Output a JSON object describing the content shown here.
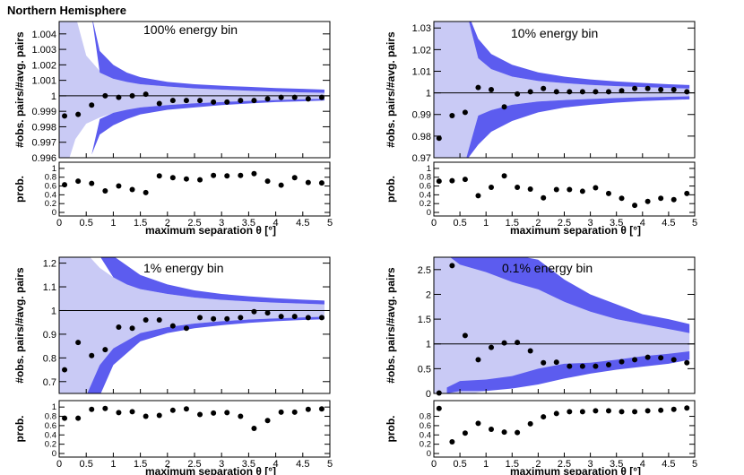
{
  "figure_title": "Northern Hemisphere",
  "chart_data": [
    {
      "type": "scatter",
      "title": "100% energy bin",
      "xlabel": "maximum separation θ [°]",
      "ylabel": "#obs. pairs/#avg. pairs",
      "sub_ylabel": "prob.",
      "xlim": [
        0,
        5
      ],
      "ylim": [
        0.996,
        1.0048
      ],
      "yticks": [
        0.996,
        0.997,
        0.998,
        0.999,
        1,
        1.001,
        1.002,
        1.003,
        1.004
      ],
      "ytick_labels": [
        "0.996",
        "0.997",
        "0.998",
        "0.999",
        "1",
        "1.001",
        "1.002",
        "1.003",
        "1.004"
      ],
      "xticks": [
        0,
        0.5,
        1,
        1.5,
        2,
        2.5,
        3,
        3.5,
        4,
        4.5,
        5
      ],
      "xtick_labels": [
        "0",
        "0.5",
        "1",
        "1.5",
        "2",
        "2.5",
        "3",
        "3.5",
        "4",
        "4.5",
        "5"
      ],
      "reference_line": 1,
      "x": [
        0.1,
        0.35,
        0.6,
        0.85,
        1.1,
        1.35,
        1.6,
        1.85,
        2.1,
        2.35,
        2.6,
        2.85,
        3.1,
        3.35,
        3.6,
        3.85,
        4.1,
        4.35,
        4.6,
        4.85
      ],
      "ratio": [
        0.9987,
        0.9988,
        0.9994,
        1.0,
        0.9999,
        1.0,
        1.0001,
        0.9995,
        0.9997,
        0.9997,
        0.9997,
        0.9996,
        0.9996,
        0.9997,
        0.9997,
        0.9998,
        0.9999,
        0.9999,
        0.9998,
        0.9999
      ],
      "prob": [
        0.63,
        0.71,
        0.66,
        0.49,
        0.6,
        0.52,
        0.45,
        0.83,
        0.79,
        0.76,
        0.74,
        0.84,
        0.83,
        0.84,
        0.88,
        0.71,
        0.62,
        0.79,
        0.68,
        0.67
      ],
      "light_band": {
        "x": [
          0,
          0.1,
          0.3,
          0.5,
          0.75,
          1,
          1.5,
          2,
          2.5,
          3,
          3.5,
          4,
          4.5,
          4.9
        ],
        "upper": [
          1.0052,
          1.0052,
          1.0052,
          1.0026,
          1.0016,
          1.0011,
          1.00075,
          1.0006,
          1.00048,
          1.0004,
          1.00033,
          1.00027,
          1.00022,
          1.0002
        ],
        "lower": [
          0.995,
          0.995,
          0.9972,
          0.9982,
          0.9986,
          0.9989,
          0.99925,
          0.9994,
          0.99952,
          0.9996,
          0.99967,
          0.99973,
          0.99978,
          0.9998
        ]
      },
      "dark_band_upper": {
        "x": [
          0.6,
          0.75,
          1,
          1.25,
          1.5,
          2,
          2.5,
          3,
          3.5,
          4,
          4.5,
          4.9
        ],
        "upper": [
          1.0052,
          1.0029,
          1.002,
          1.0015,
          1.0012,
          1.0009,
          1.00075,
          1.00065,
          1.00058,
          1.0005,
          1.00045,
          1.0004
        ],
        "lower": [
          1.0052,
          1.0015,
          1.0011,
          1.0009,
          1.00075,
          1.0006,
          1.00048,
          1.0004,
          1.00033,
          1.00027,
          1.00022,
          1.0002
        ]
      },
      "dark_band_lower": {
        "x": [
          0.6,
          0.75,
          1,
          1.25,
          1.5,
          2,
          2.5,
          3,
          3.5,
          4,
          4.5,
          4.9
        ],
        "upper": [
          0.9962,
          0.9985,
          0.9989,
          0.9991,
          0.99925,
          0.9994,
          0.99952,
          0.9996,
          0.99967,
          0.99973,
          0.99978,
          0.9998
        ],
        "lower": [
          0.9962,
          0.9975,
          0.9981,
          0.9985,
          0.9988,
          0.9991,
          0.99925,
          0.9994,
          0.9995,
          0.9996,
          0.99965,
          0.9997
        ]
      },
      "sub_yticks": [
        0,
        0.2,
        0.4,
        0.6,
        0.8,
        1
      ],
      "sub_ytick_labels": [
        "0",
        "0.2",
        "0.4",
        "0.6",
        "0.8",
        "1"
      ]
    },
    {
      "type": "scatter",
      "title": "10% energy bin",
      "xlabel": "maximum separation θ [°]",
      "ylabel": "#obs. pairs/#avg. pairs",
      "sub_ylabel": "prob.",
      "xlim": [
        0,
        5
      ],
      "ylim": [
        0.97,
        1.033
      ],
      "yticks": [
        0.97,
        0.98,
        0.99,
        1,
        1.01,
        1.02,
        1.03
      ],
      "ytick_labels": [
        "0.97",
        "0.98",
        "0.99",
        "1",
        "1.01",
        "1.02",
        "1.03"
      ],
      "xticks": [
        0,
        0.5,
        1,
        1.5,
        2,
        2.5,
        3,
        3.5,
        4,
        4.5,
        5
      ],
      "xtick_labels": [
        "0",
        "0.5",
        "1",
        "1.5",
        "2",
        "2.5",
        "3",
        "3.5",
        "4",
        "4.5",
        "5"
      ],
      "reference_line": 1,
      "x": [
        0.1,
        0.35,
        0.6,
        0.85,
        1.1,
        1.35,
        1.6,
        1.85,
        2.1,
        2.35,
        2.6,
        2.85,
        3.1,
        3.35,
        3.6,
        3.85,
        4.1,
        4.35,
        4.6,
        4.85
      ],
      "ratio": [
        0.979,
        0.9895,
        0.991,
        1.0025,
        1.0015,
        0.9935,
        0.9995,
        1.0005,
        1.002,
        1.0005,
        1.0005,
        1.0005,
        1.0005,
        1.0005,
        1.001,
        1.002,
        1.002,
        1.0015,
        1.0015,
        1.0005
      ],
      "prob": [
        0.71,
        0.72,
        0.75,
        0.38,
        0.57,
        0.83,
        0.57,
        0.53,
        0.33,
        0.52,
        0.52,
        0.48,
        0.56,
        0.43,
        0.32,
        0.16,
        0.25,
        0.32,
        0.29,
        0.43
      ],
      "light_band": {
        "x": [
          0,
          0.15,
          0.35,
          0.6,
          0.85,
          1.1,
          1.5,
          2,
          2.5,
          3,
          3.5,
          4,
          4.5,
          4.9
        ],
        "upper": [
          1.04,
          1.04,
          1.04,
          1.04,
          1.016,
          1.011,
          1.0075,
          1.0055,
          1.0045,
          1.0037,
          1.0031,
          1.0027,
          1.0023,
          1.002
        ],
        "lower": [
          0.968,
          0.968,
          0.968,
          0.968,
          0.9895,
          0.992,
          0.9945,
          0.996,
          0.9967,
          0.9972,
          0.9976,
          0.9979,
          0.9982,
          0.9984
        ]
      },
      "dark_band_upper": {
        "x": [
          0.6,
          0.85,
          1.1,
          1.5,
          2,
          2.5,
          3,
          3.5,
          4,
          4.5,
          4.9
        ],
        "upper": [
          1.04,
          1.025,
          1.018,
          1.013,
          1.0095,
          1.0075,
          1.0062,
          1.0053,
          1.0046,
          1.004,
          1.0036
        ],
        "lower": [
          1.04,
          1.016,
          1.011,
          1.0075,
          1.0055,
          1.0045,
          1.0037,
          1.0031,
          1.0027,
          1.0023,
          1.002
        ]
      },
      "dark_band_lower": {
        "x": [
          0.6,
          0.85,
          1.1,
          1.5,
          2,
          2.5,
          3,
          3.5,
          4,
          4.5,
          4.9
        ],
        "upper": [
          0.968,
          0.9895,
          0.992,
          0.9945,
          0.996,
          0.9967,
          0.9972,
          0.9976,
          0.9979,
          0.9982,
          0.9984
        ],
        "lower": [
          0.968,
          0.976,
          0.982,
          0.987,
          0.991,
          0.9932,
          0.9945,
          0.9955,
          0.9962,
          0.9967,
          0.997
        ]
      },
      "sub_yticks": [
        0,
        0.2,
        0.4,
        0.6,
        0.8,
        1
      ],
      "sub_ytick_labels": [
        "0",
        "0.2",
        "0.4",
        "0.6",
        "0.8",
        "1"
      ]
    },
    {
      "type": "scatter",
      "title": "1% energy bin",
      "xlabel": "maximum separation θ [°]",
      "ylabel": "#obs. pairs/#avg. pairs",
      "sub_ylabel": "prob.",
      "xlim": [
        0,
        5
      ],
      "ylim": [
        0.65,
        1.225
      ],
      "yticks": [
        0.7,
        0.8,
        0.9,
        1,
        1.1,
        1.2
      ],
      "ytick_labels": [
        "0.7",
        "0.8",
        "0.9",
        "1",
        "1.1",
        "1.2"
      ],
      "xticks": [
        0,
        0.5,
        1,
        1.5,
        2,
        2.5,
        3,
        3.5,
        4,
        4.5,
        5
      ],
      "xtick_labels": [
        "0",
        "0.5",
        "1",
        "1.5",
        "2",
        "2.5",
        "3",
        "3.5",
        "4",
        "4.5",
        "5"
      ],
      "reference_line": 1,
      "x": [
        0.1,
        0.35,
        0.6,
        0.85,
        1.1,
        1.35,
        1.6,
        1.85,
        2.1,
        2.35,
        2.6,
        2.85,
        3.1,
        3.35,
        3.6,
        3.85,
        4.1,
        4.35,
        4.6,
        4.85
      ],
      "ratio": [
        0.75,
        0.865,
        0.81,
        0.835,
        0.93,
        0.925,
        0.96,
        0.96,
        0.935,
        0.925,
        0.97,
        0.965,
        0.965,
        0.97,
        0.995,
        0.99,
        0.975,
        0.975,
        0.97,
        0.97
      ],
      "prob": [
        0.76,
        0.76,
        0.95,
        0.97,
        0.88,
        0.9,
        0.8,
        0.82,
        0.93,
        0.96,
        0.84,
        0.87,
        0.88,
        0.8,
        0.54,
        0.71,
        0.89,
        0.89,
        0.95,
        0.96
      ],
      "light_band": {
        "x": [
          0,
          0.3,
          0.55,
          0.75,
          1,
          1.5,
          2,
          2.5,
          3,
          3.5,
          4,
          4.5,
          4.9
        ],
        "upper": [
          1.23,
          1.23,
          1.23,
          1.18,
          1.14,
          1.09,
          1.07,
          1.055,
          1.045,
          1.038,
          1.033,
          1.029,
          1.026
        ],
        "lower": [
          0.64,
          0.64,
          0.64,
          0.77,
          0.84,
          0.905,
          0.93,
          0.945,
          0.955,
          0.962,
          0.967,
          0.971,
          0.974
        ]
      },
      "dark_band_upper": {
        "x": [
          0.75,
          1,
          1.25,
          1.5,
          2,
          2.5,
          3,
          3.5,
          4,
          4.5,
          4.9
        ],
        "upper": [
          1.23,
          1.23,
          1.19,
          1.15,
          1.11,
          1.085,
          1.07,
          1.06,
          1.052,
          1.046,
          1.042
        ],
        "lower": [
          1.23,
          1.14,
          1.11,
          1.09,
          1.07,
          1.055,
          1.045,
          1.038,
          1.033,
          1.029,
          1.026
        ]
      },
      "dark_band_lower": {
        "x": [
          0.5,
          0.75,
          1,
          1.5,
          2,
          2.5,
          3,
          3.5,
          4,
          4.5,
          4.9
        ],
        "upper": [
          0.64,
          0.77,
          0.84,
          0.905,
          0.93,
          0.945,
          0.955,
          0.962,
          0.967,
          0.971,
          0.974
        ],
        "lower": [
          0.64,
          0.64,
          0.77,
          0.87,
          0.905,
          0.925,
          0.938,
          0.948,
          0.955,
          0.96,
          0.963
        ]
      },
      "sub_yticks": [
        0,
        0.2,
        0.4,
        0.6,
        0.8,
        1
      ],
      "sub_ytick_labels": [
        "0",
        "0.2",
        "0.4",
        "0.6",
        "0.8",
        "1"
      ]
    },
    {
      "type": "scatter",
      "title": "0.1% energy bin",
      "xlabel": "maximum separation θ [°]",
      "ylabel": "#obs. pairs/#avg. pairs",
      "sub_ylabel": "prob.",
      "xlim": [
        0,
        5
      ],
      "ylim": [
        0,
        2.75
      ],
      "yticks": [
        0,
        0.5,
        1,
        1.5,
        2,
        2.5
      ],
      "ytick_labels": [
        "0",
        "0.5",
        "1",
        "1.5",
        "2",
        "2.5"
      ],
      "xticks": [
        0,
        0.5,
        1,
        1.5,
        2,
        2.5,
        3,
        3.5,
        4,
        4.5,
        5
      ],
      "xtick_labels": [
        "0",
        "0.5",
        "1",
        "1.5",
        "2",
        "2.5",
        "3",
        "3.5",
        "4",
        "4.5",
        "5"
      ],
      "reference_line": 1,
      "x": [
        0.1,
        0.35,
        0.6,
        0.85,
        1.1,
        1.35,
        1.6,
        1.85,
        2.1,
        2.35,
        2.6,
        2.85,
        3.1,
        3.35,
        3.6,
        3.85,
        4.1,
        4.35,
        4.6,
        4.85
      ],
      "ratio": [
        0.01,
        2.58,
        1.17,
        0.68,
        0.93,
        1.02,
        1.03,
        0.86,
        0.62,
        0.63,
        0.55,
        0.55,
        0.55,
        0.58,
        0.64,
        0.68,
        0.73,
        0.72,
        0.68,
        0.62
      ],
      "prob": [
        0.97,
        0.25,
        0.44,
        0.65,
        0.52,
        0.46,
        0.45,
        0.64,
        0.79,
        0.86,
        0.9,
        0.9,
        0.92,
        0.92,
        0.9,
        0.9,
        0.92,
        0.93,
        0.95,
        0.98
      ],
      "light_band": {
        "x": [
          0,
          0.25,
          0.5,
          0.75,
          1,
          1.5,
          2,
          2.5,
          3,
          3.5,
          4,
          4.5,
          4.9
        ],
        "upper": [
          2.8,
          2.8,
          2.8,
          2.8,
          2.8,
          2.45,
          2.1,
          1.85,
          1.65,
          1.5,
          1.4,
          1.32,
          1.25
        ],
        "lower": [
          0,
          0,
          0,
          0,
          0.05,
          0.18,
          0.3,
          0.4,
          0.48,
          0.54,
          0.6,
          0.65,
          0.7
        ]
      },
      "dark_band_upper": {
        "x": [
          0.25,
          0.5,
          1,
          1.5,
          2,
          2.5,
          3,
          3.5,
          4,
          4.5,
          4.9
        ],
        "upper": [
          2.8,
          2.8,
          2.8,
          2.8,
          2.7,
          2.3,
          2.0,
          1.8,
          1.6,
          1.5,
          1.4
        ],
        "lower": [
          2.8,
          2.6,
          2.45,
          2.25,
          2.1,
          1.85,
          1.65,
          1.5,
          1.4,
          1.3,
          1.22
        ]
      },
      "dark_band_lower": {
        "x": [
          0.25,
          0.5,
          1,
          1.5,
          2,
          2.5,
          3,
          3.5,
          4,
          4.5,
          4.9
        ],
        "upper": [
          0.12,
          0.25,
          0.28,
          0.35,
          0.5,
          0.6,
          0.62,
          0.68,
          0.75,
          0.8,
          0.85
        ],
        "lower": [
          0,
          0.05,
          0.05,
          0.1,
          0.18,
          0.3,
          0.4,
          0.48,
          0.54,
          0.6,
          0.68
        ]
      },
      "sub_yticks": [
        0,
        0.2,
        0.4,
        0.6,
        0.8
      ],
      "sub_ytick_labels": [
        "0",
        "0.2",
        "0.4",
        "0.6",
        "0.8"
      ]
    }
  ]
}
